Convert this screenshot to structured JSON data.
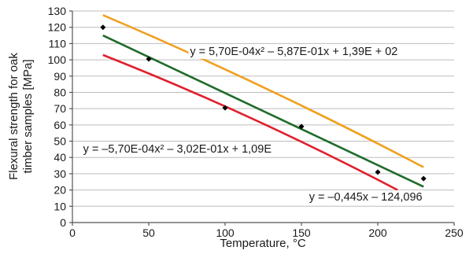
{
  "chart_data": {
    "type": "scatter",
    "xlabel": "Temperature, °C",
    "ylabel": "Flexural strength for oak timber samples [MPa]",
    "ylabel_lines": [
      "Flexural strength for oak",
      "timber samples [MPa]"
    ],
    "xlim": [
      0,
      250
    ],
    "ylim": [
      0,
      130
    ],
    "x_ticks": [
      0,
      50,
      100,
      150,
      200,
      250
    ],
    "y_ticks": [
      0,
      10,
      20,
      30,
      40,
      50,
      60,
      70,
      80,
      90,
      100,
      110,
      120,
      130
    ],
    "grid": "horizontal",
    "points": {
      "x": [
        20,
        50,
        100,
        150,
        200,
        230
      ],
      "y": [
        120,
        100.5,
        70.5,
        59,
        31,
        27
      ],
      "color": "#000000",
      "marker": "diamond"
    },
    "series": [
      {
        "color": "#f0a020",
        "x": [
          20,
          230
        ],
        "y": [
          127.5,
          34
        ],
        "equation": "y = 5,70E-04x² – 5,87E-01x + 1,39E + 02"
      },
      {
        "color": "#1f6b2a",
        "x": [
          20,
          230
        ],
        "y": [
          115,
          22
        ],
        "equation": "y = –0,445x – 124,096"
      },
      {
        "color": "#e0202e",
        "x": [
          20,
          213
        ],
        "y": [
          103,
          20
        ],
        "equation": "y = –5,70E-04x² – 3,02E-01x + 1,09E"
      }
    ],
    "annotations": [
      {
        "text": "y = 5,70E-04x² – 5,87E-01x + 1,39E + 02",
        "x": 77,
        "y": 103
      },
      {
        "text": "y = –5,70E-04x² – 3,02E-01x + 1,09E",
        "x": 7,
        "y": 43
      },
      {
        "text": "y = –0,445x – 124,096",
        "x": 155,
        "y": 13.5
      }
    ]
  }
}
